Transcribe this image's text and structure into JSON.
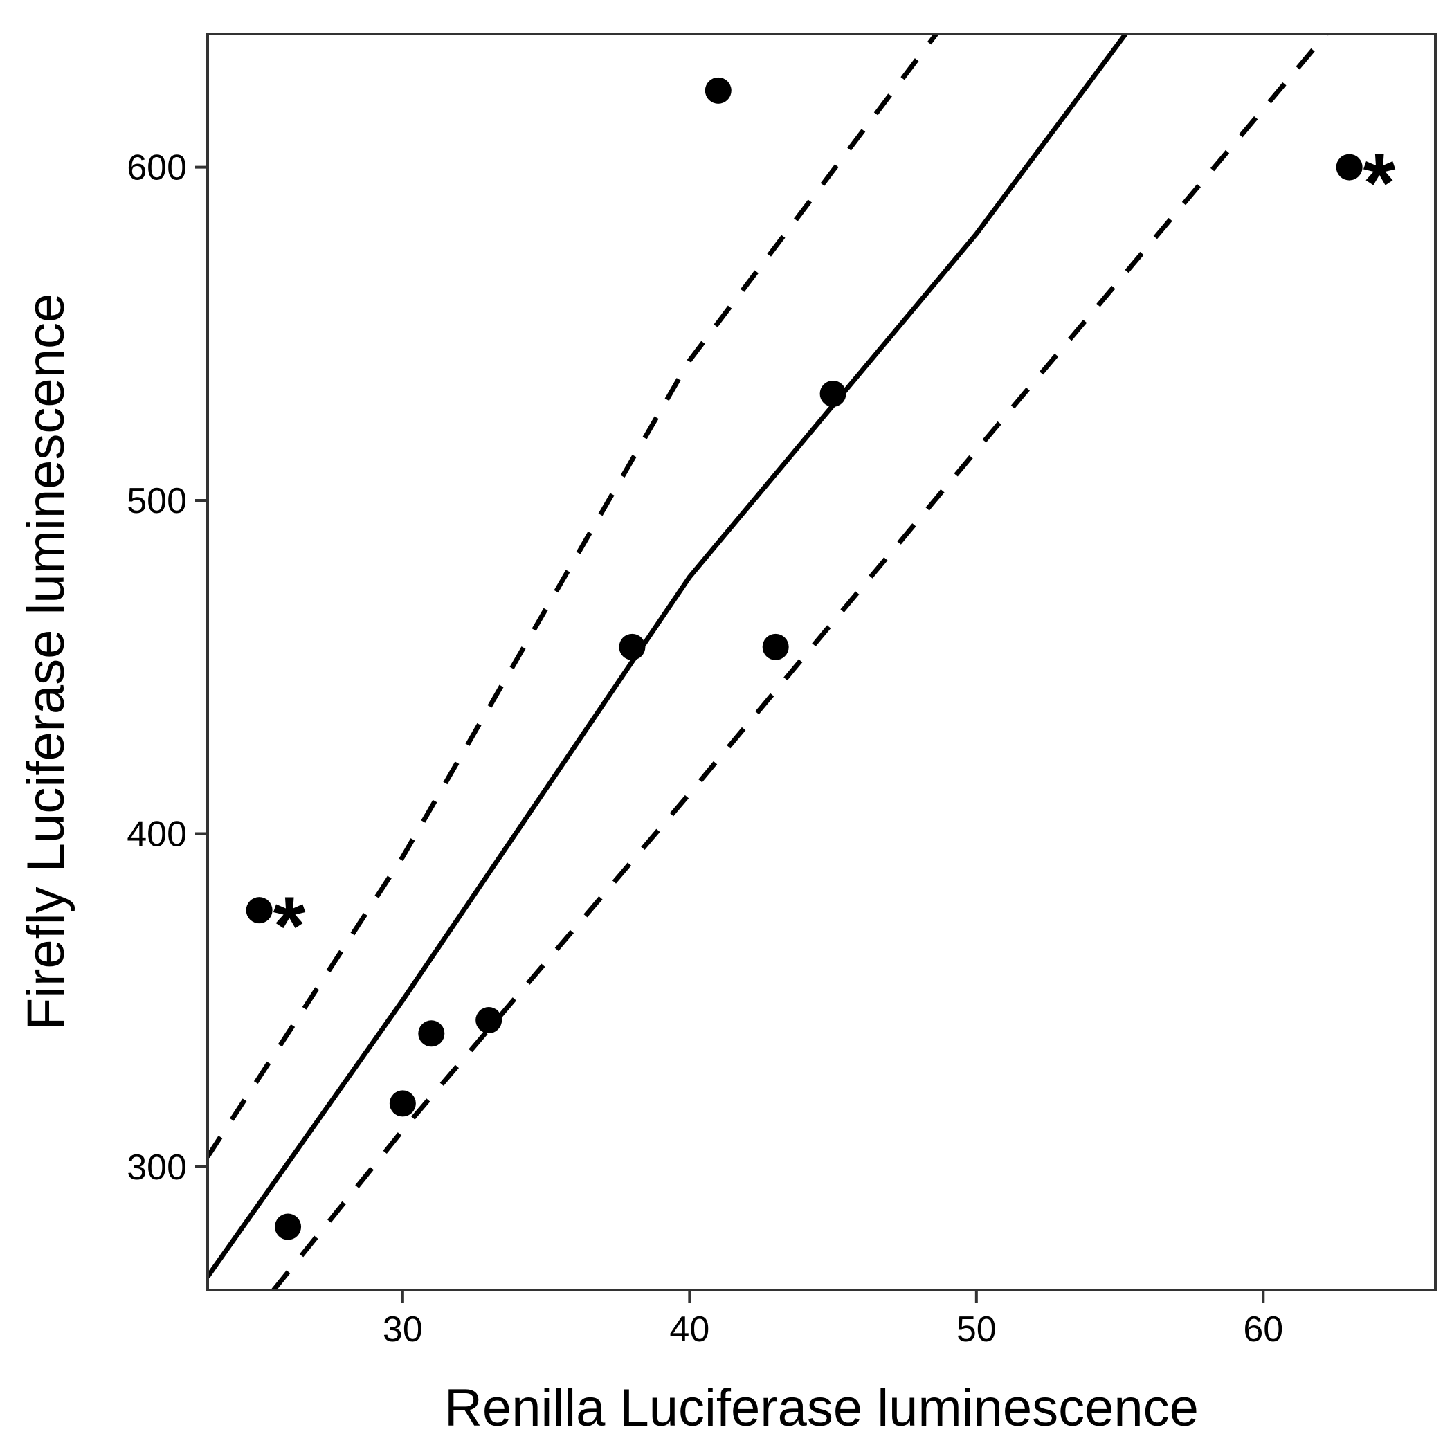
{
  "chart_data": {
    "type": "scatter",
    "xlabel": "Renilla Luciferase luminescence",
    "ylabel": "Firefly Luciferase luminescence",
    "xlim": [
      23.2,
      66
    ],
    "ylim": [
      263,
      640
    ],
    "x_ticks": [
      30,
      40,
      50,
      60
    ],
    "y_ticks": [
      300,
      400,
      500,
      600
    ],
    "grid": false,
    "legend": "none",
    "points": [
      {
        "x": 25,
        "y": 377,
        "marker": "*"
      },
      {
        "x": 26,
        "y": 282,
        "marker": ""
      },
      {
        "x": 30,
        "y": 319,
        "marker": ""
      },
      {
        "x": 31,
        "y": 340,
        "marker": ""
      },
      {
        "x": 33,
        "y": 344,
        "marker": ""
      },
      {
        "x": 38,
        "y": 456,
        "marker": ""
      },
      {
        "x": 41,
        "y": 623,
        "marker": ""
      },
      {
        "x": 43,
        "y": 456,
        "marker": ""
      },
      {
        "x": 45,
        "y": 532,
        "marker": ""
      },
      {
        "x": 63,
        "y": 600,
        "marker": "*"
      }
    ],
    "lines": [
      {
        "style": "solid",
        "x": [
          23.2,
          30,
          40,
          50,
          55.2
        ],
        "y": [
          267,
          350,
          477,
          580,
          640
        ]
      },
      {
        "style": "dashed",
        "x": [
          23.2,
          30,
          40,
          48.6
        ],
        "y": [
          303,
          393,
          542,
          640
        ]
      },
      {
        "style": "dashed",
        "x": [
          25.5,
          30,
          40,
          50,
          62.2
        ],
        "y": [
          263,
          311,
          412,
          515,
          640
        ]
      }
    ],
    "colors": {
      "points": "#000000",
      "lines": "#000000",
      "frame": "#333333"
    }
  }
}
